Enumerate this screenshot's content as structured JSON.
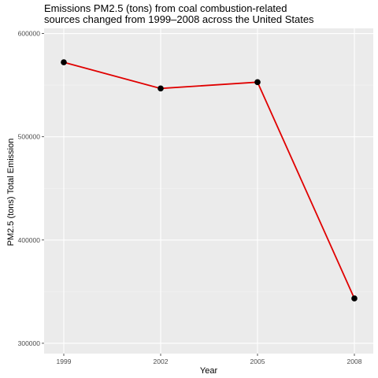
{
  "title_lines": [
    "Emissions PM2.5 (tons) from coal combustion-related",
    "sources changed from 1999–2008 across the United States"
  ],
  "chart_data": {
    "type": "line",
    "title": "Emissions PM2.5 (tons) from coal combustion-related sources changed from 1999–2008 across the United States",
    "xlabel": "Year",
    "ylabel": "PM2.5 (tons) Total Emission",
    "categories": [
      "1999",
      "2002",
      "2005",
      "2008"
    ],
    "series": [
      {
        "values": [
          572126,
          546789,
          552881,
          343432
        ]
      }
    ],
    "yticks": [
      300000,
      400000,
      500000,
      600000
    ],
    "ytick_labels": [
      "300000",
      "400000",
      "500000",
      "600000"
    ],
    "ylim": [
      290000,
      605000
    ],
    "grid": true,
    "colors": {
      "line": "#e00000",
      "point": "#000000",
      "panel": "#ebebeb",
      "grid": "#ffffff"
    }
  }
}
